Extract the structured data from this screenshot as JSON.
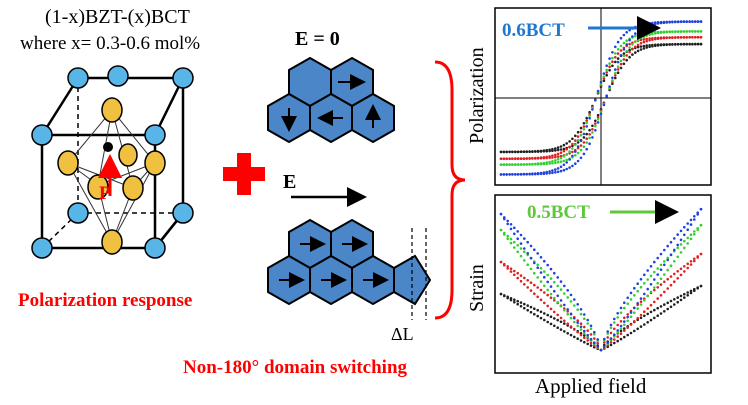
{
  "title_formula": "(1-x)BZT-(x)BCT",
  "composition_range": "where x= 0.3-0.6 mol%",
  "polarization_response": "Polarization response",
  "p_vector_label": "P",
  "e_zero_label": "E = 0",
  "e_field_label": "E",
  "delta_l_label": "ΔL",
  "domain_switching_caption": "Non-180° domain switching",
  "plots": {
    "polarization_ylabel": "Polarization",
    "strain_ylabel": "Strain",
    "xlabel": "Applied field",
    "bct_06_label": "0.6BCT",
    "bct_05_label": "0.5BCT"
  },
  "colors": {
    "accent_red": "#ff0000",
    "hex_fill": "#4a86c8",
    "a_site_atom": "#57b5e8",
    "o_atom": "#f0c040",
    "series_blue": "#2040e0",
    "series_green": "#30d030",
    "series_red": "#e02020",
    "series_black": "#202020"
  },
  "chart_data": [
    {
      "type": "line",
      "ylabel": "Polarization",
      "xlabel": "",
      "annotation": "0.6BCT",
      "series": [
        {
          "values": [
            [
              -1,
              -0.55
            ],
            [
              -0.5,
              -0.45
            ],
            [
              0,
              0
            ],
            [
              0.5,
              0.45
            ],
            [
              1,
              0.55
            ]
          ]
        },
        {
          "values": [
            [
              -1,
              -0.62
            ],
            [
              -0.5,
              -0.52
            ],
            [
              0,
              0
            ],
            [
              0.5,
              0.52
            ],
            [
              1,
              0.62
            ]
          ]
        },
        {
          "values": [
            [
              -1,
              -0.68
            ],
            [
              -0.5,
              -0.58
            ],
            [
              0,
              0
            ],
            [
              0.5,
              0.58
            ],
            [
              1,
              0.68
            ]
          ]
        },
        {
          "values": [
            [
              -1,
              -0.78
            ],
            [
              -0.5,
              -0.68
            ],
            [
              0,
              0
            ],
            [
              0.5,
              0.68
            ],
            [
              1,
              0.78
            ]
          ]
        }
      ]
    },
    {
      "type": "line",
      "ylabel": "Strain",
      "xlabel": "Applied field",
      "annotation": "0.5BCT",
      "series": [
        {
          "values": [
            [
              -1,
              0.35
            ],
            [
              0,
              0
            ],
            [
              1,
              0.4
            ]
          ]
        },
        {
          "values": [
            [
              -1,
              0.55
            ],
            [
              0,
              0
            ],
            [
              1,
              0.6
            ]
          ]
        },
        {
          "values": [
            [
              -1,
              0.75
            ],
            [
              0,
              0
            ],
            [
              1,
              0.78
            ]
          ]
        },
        {
          "values": [
            [
              -1,
              0.85
            ],
            [
              0,
              0
            ],
            [
              1,
              0.88
            ]
          ]
        }
      ]
    }
  ]
}
